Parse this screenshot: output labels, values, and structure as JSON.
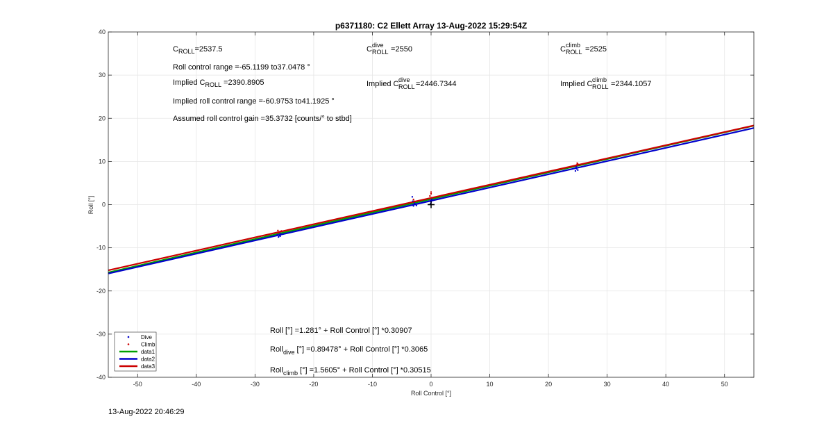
{
  "chart_data": {
    "type": "scatter",
    "title": "p6371180: C2 Ellett Array 13-Aug-2022 15:29:54Z",
    "xlabel": "Roll Control [°]",
    "ylabel": "Roll [°]",
    "xlim": [
      -55,
      55
    ],
    "ylim": [
      -40,
      40
    ],
    "xticks": [
      -50,
      -40,
      -30,
      -20,
      -10,
      0,
      10,
      20,
      30,
      40,
      50
    ],
    "yticks": [
      -40,
      -30,
      -20,
      -10,
      0,
      10,
      20,
      30,
      40
    ],
    "grid": true,
    "legend_position": "bottom-left",
    "series": [
      {
        "name": "Dive",
        "kind": "points",
        "color": "#0000cc",
        "points": [
          [
            -26,
            -7.5
          ],
          [
            -25.8,
            -7.2
          ],
          [
            -25.6,
            -6.8
          ],
          [
            -26.2,
            -7.0
          ],
          [
            -25.9,
            -6.5
          ],
          [
            -25.7,
            -7.3
          ],
          [
            -3,
            -0.3
          ],
          [
            -2.8,
            0.3
          ],
          [
            -3.2,
            1.8
          ],
          [
            -2.5,
            -0.2
          ],
          [
            -3.1,
            0.8
          ],
          [
            0,
            0.6
          ],
          [
            0.1,
            1.2
          ],
          [
            -0.1,
            0.2
          ],
          [
            24.6,
            7.8
          ],
          [
            24.8,
            8.3
          ],
          [
            24.7,
            8.8
          ],
          [
            25,
            8.0
          ]
        ]
      },
      {
        "name": "Climb",
        "kind": "points",
        "color": "#cc0000",
        "points": [
          [
            -26.1,
            -6.0
          ],
          [
            -25.8,
            -6.3
          ],
          [
            -25.5,
            -6.1
          ],
          [
            -26,
            -6.5
          ],
          [
            -25.6,
            -6.2
          ],
          [
            -2.9,
            0.8
          ],
          [
            -3.0,
            1.2
          ],
          [
            0,
            2.5
          ],
          [
            -0.2,
            2.0
          ],
          [
            0.1,
            1.6
          ],
          [
            0,
            2.9
          ],
          [
            24.8,
            9.2
          ],
          [
            24.9,
            9.6
          ],
          [
            24.6,
            9.0
          ],
          [
            25,
            9.4
          ]
        ]
      },
      {
        "name": "data1",
        "kind": "line",
        "color": "#00a000",
        "intercept": 1.281,
        "slope": 0.30907
      },
      {
        "name": "data2",
        "kind": "line",
        "color": "#0000cc",
        "intercept": 0.89478,
        "slope": 0.3065
      },
      {
        "name": "data3",
        "kind": "line",
        "color": "#cc0000",
        "intercept": 1.5605,
        "slope": 0.30515
      }
    ],
    "marker": {
      "x": 0,
      "y": 0,
      "symbol": "+"
    },
    "annotations": {
      "c_roll": {
        "base": "C",
        "sub": "ROLL",
        "rest": "=2537.5"
      },
      "roll_range": "Roll control range =-65.1199 to37.0478 °",
      "implied_c_roll": {
        "pre": "Implied C",
        "sub": "ROLL",
        "rest": " =2390.8905"
      },
      "implied_range": "Implied roll control range =-60.9753 to41.1925 °",
      "gain": "Assumed roll control gain =35.3732 [counts/° to stbd]",
      "c_dive": {
        "base": "C",
        "sup": "dive",
        "sub": "ROLL",
        "rest": " =2550"
      },
      "implied_c_dive": {
        "pre": "Implied C",
        "sup": "dive",
        "sub": "ROLL",
        "rest": " =2446.7344"
      },
      "c_climb": {
        "base": "C",
        "sup": "climb",
        "sub": "ROLL",
        "rest": " =2525"
      },
      "implied_c_climb": {
        "pre": "Implied C",
        "sup": "climb",
        "sub": "ROLL",
        "rest": " =2344.1057"
      },
      "eq_all": "Roll [°] =1.281° + Roll Control [°] *0.30907",
      "eq_dive": {
        "base": "Roll",
        "sub": "dive",
        "rest": " [°] =0.89478° + Roll Control [°] *0.3065"
      },
      "eq_climb": {
        "base": "Roll",
        "sub": "climb",
        "rest": " [°] =1.5605° + Roll Control [°] *0.30515"
      }
    }
  },
  "footer": {
    "timestamp": "13-Aug-2022 20:46:29"
  }
}
